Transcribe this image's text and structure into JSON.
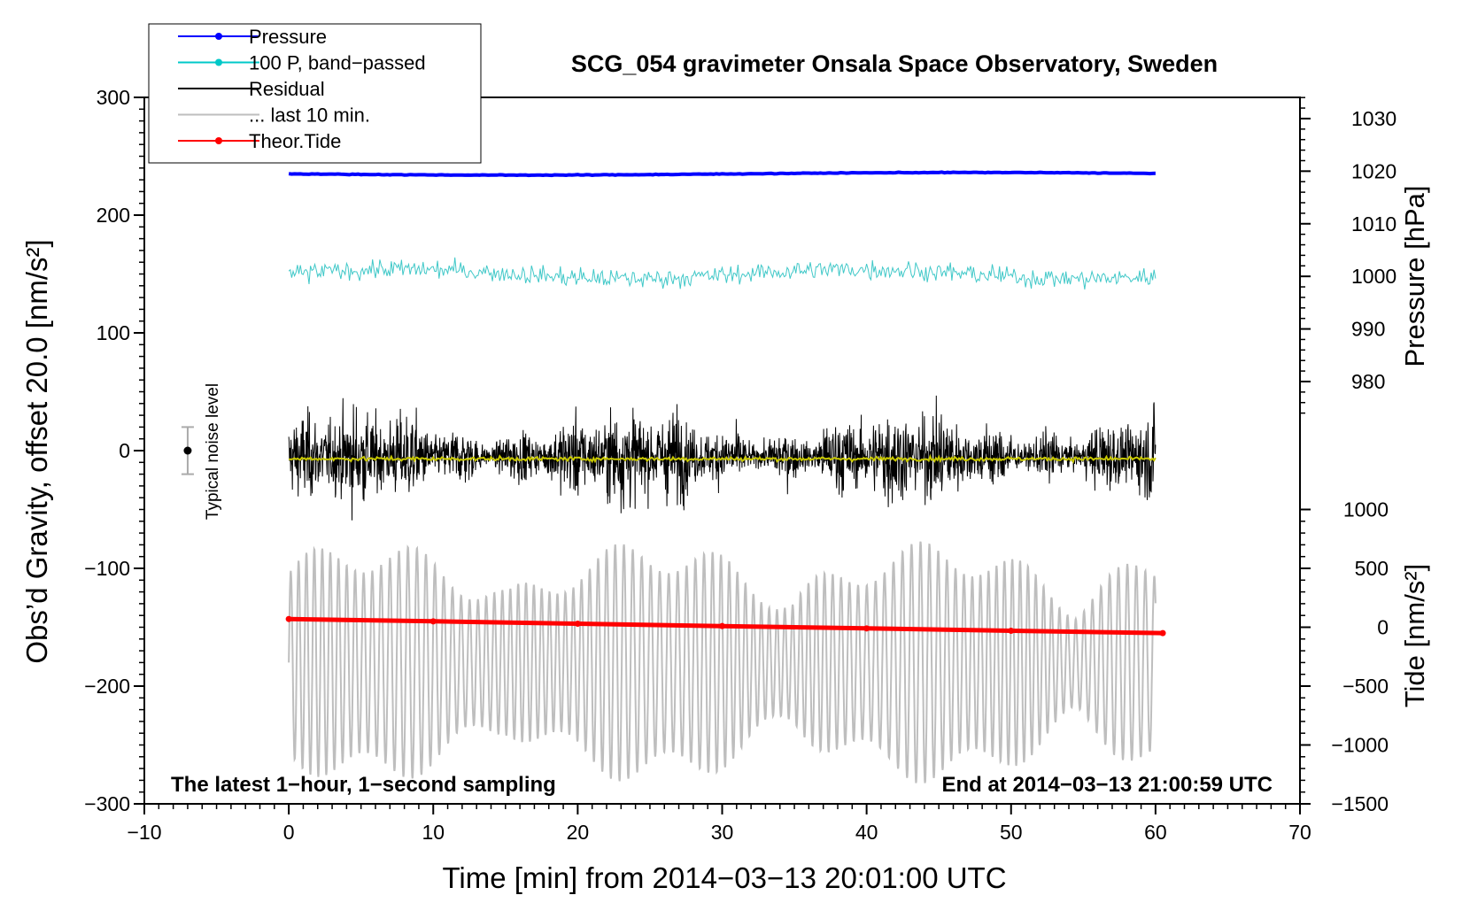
{
  "chart_data": {
    "type": "line",
    "title": "SCG_054 gravimeter Onsala Space Observatory, Sweden",
    "xlabel": "Time [min] from 2014−03−13 20:01:00 UTC",
    "ylabel": "Obs’d Gravity, offset 20.0 [nm/s²]",
    "ylabel_right_top": "Pressure [hPa]",
    "ylabel_right_bottom": "Tide [nm/s²]",
    "xlim": [
      -10,
      70
    ],
    "ylim": [
      -300,
      300
    ],
    "x_ticks": [
      -10,
      0,
      10,
      20,
      30,
      40,
      50,
      60,
      70
    ],
    "x_tick_labels": [
      "−10",
      "0",
      "10",
      "20",
      "30",
      "40",
      "50",
      "60",
      "70"
    ],
    "y_ticks": [
      -300,
      -200,
      -100,
      0,
      100,
      200,
      300
    ],
    "y_tick_labels": [
      "−300",
      "−200",
      "−100",
      "0",
      "100",
      "200",
      "300"
    ],
    "pressure_axis": {
      "ticks": [
        980,
        990,
        1000,
        1010,
        1020,
        1030
      ],
      "tick_labels": [
        "980",
        "990",
        "1000",
        "1010",
        "1020",
        "1030"
      ],
      "map": {
        "hpa_a": 1000,
        "grav_a": 148,
        "hpa_b": 1030,
        "grav_b": 282
      }
    },
    "tide_axis": {
      "ticks": [
        -1500,
        -1000,
        -500,
        0,
        500,
        1000
      ],
      "tick_labels": [
        "−1500",
        "−1000",
        "−500",
        "0",
        "500",
        "1000"
      ],
      "map": {
        "tide_a": -1500,
        "grav_a": -300,
        "tide_b": 1000,
        "grav_b": -50
      }
    },
    "legend": {
      "position": "top-left",
      "entries": [
        {
          "label": "Pressure",
          "color": "#0000ff",
          "marker": true
        },
        {
          "label": "100 P, band−passed",
          "color": "#00c8c8",
          "marker": true
        },
        {
          "label": "Residual",
          "color": "#000000",
          "marker": false
        },
        {
          "label": "... last 10 min.",
          "color": "#bebebe",
          "marker": false
        },
        {
          "label": "Theor.Tide",
          "color": "#ff0000",
          "marker": true
        }
      ]
    },
    "series": [
      {
        "name": "Pressure",
        "color": "#0000ff",
        "x_range": [
          0,
          60
        ],
        "approx_value_hpa": 1019.5
      },
      {
        "name": "100 P, band-passed",
        "color": "#40c8c8",
        "x_range": [
          0,
          60
        ],
        "approx_level": 150,
        "approx_amplitude": 15
      },
      {
        "name": "Residual",
        "color": "#000000",
        "x_range": [
          0,
          60
        ],
        "approx_level": -5,
        "approx_amplitude": 70
      },
      {
        "name": "Residual smoothed",
        "color": "#c8c800",
        "x_range": [
          0,
          60
        ],
        "approx_level": -7
      },
      {
        "name": "... last 10 min.",
        "color": "#bebebe",
        "x_range": [
          0,
          60
        ],
        "approx_level": -180,
        "approx_amplitude": 90
      },
      {
        "name": "Theor.Tide",
        "color": "#ff0000",
        "x": [
          0,
          10,
          20,
          30,
          40,
          50,
          60.5
        ],
        "values": [
          -143,
          -145,
          -147,
          -149,
          -151,
          -153,
          -155
        ]
      }
    ],
    "noise_bar": {
      "x": -7,
      "value": 0,
      "half_range": 20,
      "label": "Typical noise level"
    },
    "annotations": {
      "bottom_left": "The latest 1−hour, 1−second sampling",
      "bottom_right": "End at 2014−03−13 21:00:59 UTC"
    }
  }
}
